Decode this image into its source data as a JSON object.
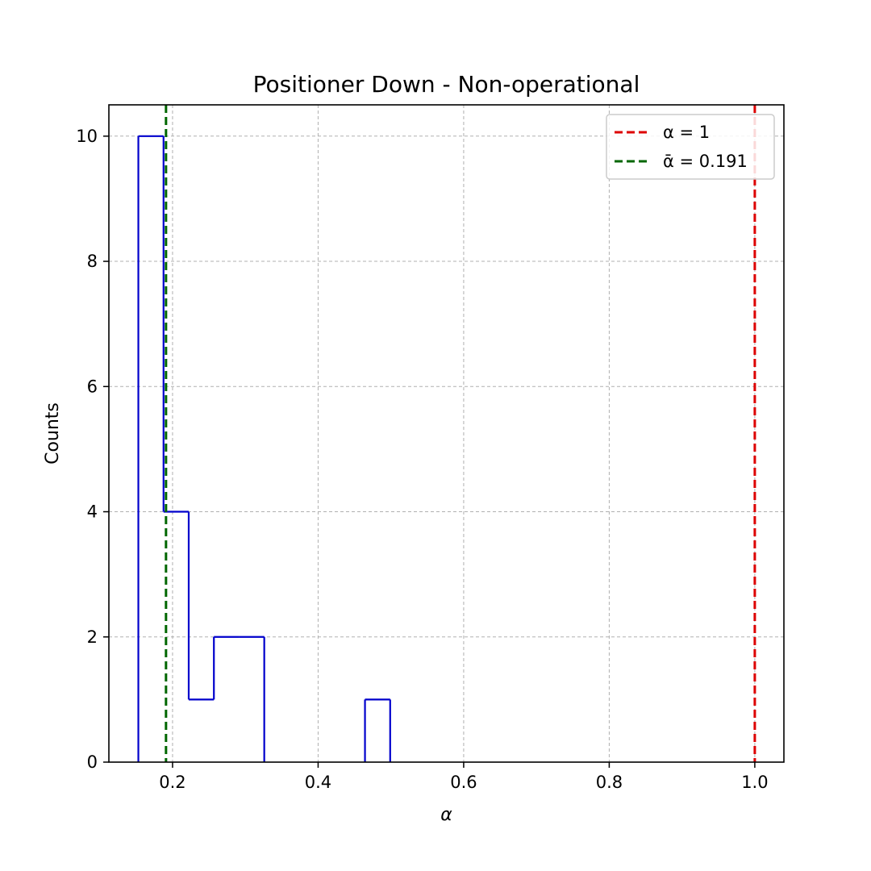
{
  "chart_data": {
    "type": "histogram",
    "title": "Positioner Down - Non-operational",
    "xlabel": "α",
    "ylabel": "Counts",
    "xlim": [
      0.1125,
      1.04
    ],
    "ylim": [
      0,
      10.5
    ],
    "xticks": [
      0.2,
      0.4,
      0.6,
      0.8,
      1.0
    ],
    "xtick_labels": [
      "0.2",
      "0.4",
      "0.6",
      "0.8",
      "1.0"
    ],
    "yticks": [
      0,
      2,
      4,
      6,
      8,
      10
    ],
    "ytick_labels": [
      "0",
      "2",
      "4",
      "6",
      "8",
      "10"
    ],
    "grid": true,
    "histtype": "step",
    "bin_edges": [
      0.153,
      0.1876,
      0.2222,
      0.2568,
      0.2914,
      0.326,
      0.3606,
      0.3952,
      0.4298,
      0.4644,
      0.499
    ],
    "counts": [
      10,
      4,
      1,
      2,
      2,
      0,
      0,
      0,
      0,
      1
    ],
    "hist_color": "#0000cc",
    "reference_lines": [
      {
        "x": 1.0,
        "label": "α = 1",
        "color": "#dd0000",
        "style": "dashed"
      },
      {
        "x": 0.191,
        "label": "ᾱ = 0.191",
        "color": "#006600",
        "style": "dashed"
      }
    ],
    "legend_position": "top-right"
  }
}
